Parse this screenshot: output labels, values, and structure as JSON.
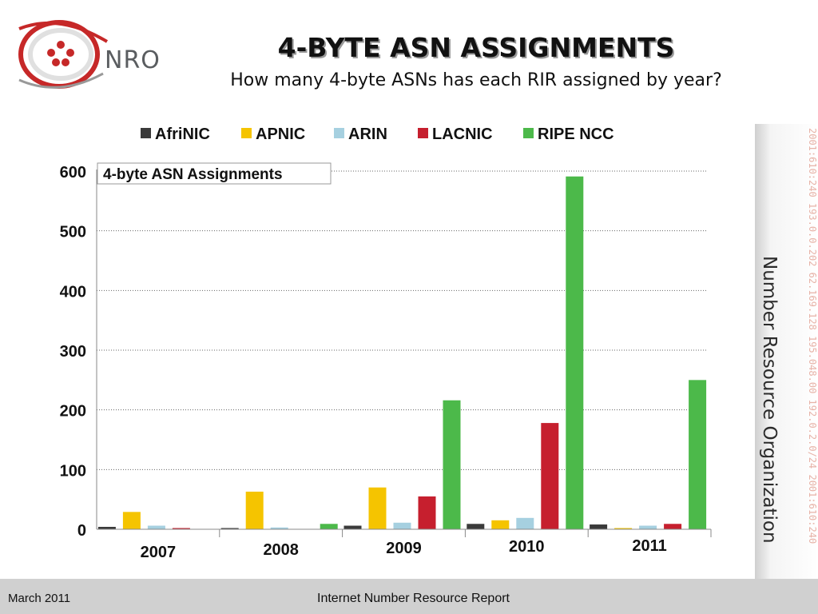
{
  "header": {
    "logo_text": "NRO",
    "title": "4-BYTE ASN ASSIGNMENTS",
    "subtitle": "How many 4-byte ASNs has each RIR assigned by year?"
  },
  "side_panel": {
    "numbers": "2001:610:240 193.0.0.202 62.169.128 195.048.00 192.0.2.0/24 2001:610:240",
    "organization": "Number Resource Organization"
  },
  "footer": {
    "date": "March 2011",
    "report_title": "Internet Number Resource Report"
  },
  "chart_data": {
    "type": "bar",
    "title": "4-byte ASN Assignments",
    "categories": [
      "2007",
      "2008",
      "2009",
      "2010",
      "2011"
    ],
    "ylim": [
      0,
      600
    ],
    "yticks": [
      "0",
      "100",
      "200",
      "300",
      "400",
      "500",
      "600"
    ],
    "grid": true,
    "legend_position": "top",
    "series": [
      {
        "name": "AfriNIC",
        "color": "#3a3a3a",
        "values": [
          4,
          2,
          6,
          9,
          8
        ]
      },
      {
        "name": "APNIC",
        "color": "#f5c400",
        "values": [
          29,
          63,
          70,
          15,
          2
        ]
      },
      {
        "name": "ARIN",
        "color": "#a6d0e0",
        "values": [
          6,
          3,
          11,
          19,
          6
        ]
      },
      {
        "name": "LACNIC",
        "color": "#c61f2e",
        "values": [
          2,
          0,
          55,
          178,
          9
        ]
      },
      {
        "name": "RIPE NCC",
        "color": "#4cb94a",
        "values": [
          0,
          9,
          216,
          591,
          250
        ]
      }
    ]
  }
}
